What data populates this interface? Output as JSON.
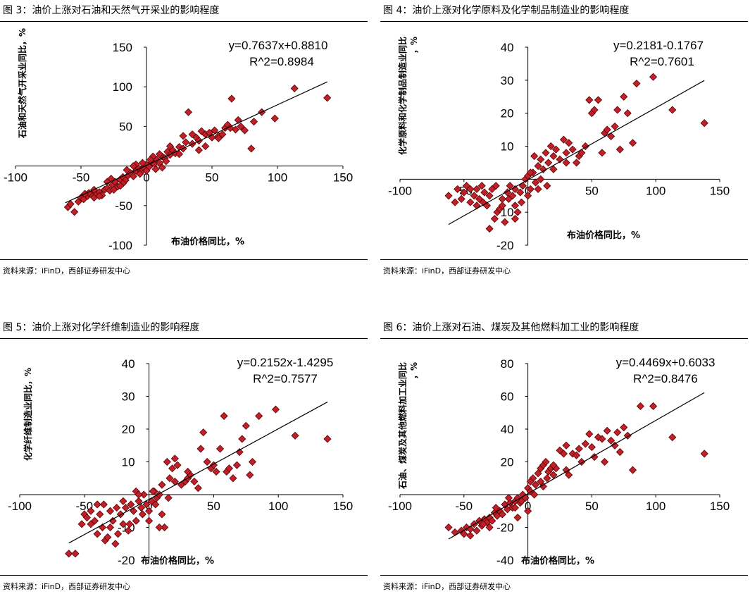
{
  "source_label": "资料来源：iFinD，西部证券研发中心",
  "colors": {
    "marker_fill": "#C0202A",
    "marker_stroke": "#5a0000",
    "axis": "#000000",
    "trendline": "#000000"
  },
  "chart_data": [
    {
      "type": "scatter",
      "title": "图 3：油价上涨对石油和天然气开采业的影响程度",
      "xlabel": "布油价格同比，%",
      "ylabel": "石油和天然气开采业同比，%",
      "equation": "y=0.7637x+0.8810",
      "r2": "R^2=0.8984",
      "slope": 0.7637,
      "intercept": 0.881,
      "xlim": [
        -100,
        150
      ],
      "ylim": [
        -100,
        150
      ],
      "xticks": [
        -100,
        -50,
        0,
        50,
        100,
        150
      ],
      "yticks": [
        -100,
        -50,
        0,
        50,
        100,
        150
      ],
      "trend_x": [
        -62,
        138
      ],
      "points": [
        [
          -60,
          -52
        ],
        [
          -55,
          -58
        ],
        [
          -52,
          -45
        ],
        [
          -50,
          -40
        ],
        [
          -48,
          -42
        ],
        [
          -45,
          -38
        ],
        [
          -42,
          -36
        ],
        [
          -40,
          -40
        ],
        [
          -38,
          -35
        ],
        [
          -36,
          -33
        ],
        [
          -34,
          -37
        ],
        [
          -32,
          -30
        ],
        [
          -30,
          -28
        ],
        [
          -28,
          -31
        ],
        [
          -26,
          -24
        ],
        [
          -24,
          -20
        ],
        [
          -22,
          -26
        ],
        [
          -20,
          -17
        ],
        [
          -18,
          -14
        ],
        [
          -16,
          -18
        ],
        [
          -14,
          -12
        ],
        [
          -12,
          -9
        ],
        [
          -10,
          -13
        ],
        [
          -8,
          -6
        ],
        [
          -6,
          -3
        ],
        [
          -4,
          -7
        ],
        [
          -2,
          -2
        ],
        [
          0,
          2
        ],
        [
          2,
          -1
        ],
        [
          4,
          5
        ],
        [
          6,
          3
        ],
        [
          8,
          8
        ],
        [
          10,
          4
        ],
        [
          12,
          12
        ],
        [
          14,
          10
        ],
        [
          16,
          18
        ],
        [
          18,
          14
        ],
        [
          20,
          20
        ],
        [
          22,
          16
        ],
        [
          25,
          24
        ],
        [
          28,
          22
        ],
        [
          30,
          30
        ],
        [
          32,
          68
        ],
        [
          35,
          28
        ],
        [
          38,
          36
        ],
        [
          40,
          32
        ],
        [
          42,
          44
        ],
        [
          45,
          40
        ],
        [
          48,
          42
        ],
        [
          52,
          45
        ],
        [
          55,
          38
        ],
        [
          58,
          40
        ],
        [
          60,
          48
        ],
        [
          62,
          52
        ],
        [
          65,
          85
        ],
        [
          68,
          46
        ],
        [
          70,
          58
        ],
        [
          72,
          50
        ],
        [
          75,
          45
        ],
        [
          80,
          22
        ],
        [
          82,
          56
        ],
        [
          88,
          68
        ],
        [
          98,
          60
        ],
        [
          113,
          98
        ],
        [
          138,
          86
        ],
        [
          -30,
          -20
        ],
        [
          -25,
          -30
        ],
        [
          -15,
          -5
        ],
        [
          -5,
          -10
        ],
        [
          5,
          12
        ],
        [
          15,
          6
        ],
        [
          25,
          15
        ],
        [
          35,
          40
        ],
        [
          45,
          25
        ],
        [
          55,
          35
        ],
        [
          -44,
          -34
        ],
        [
          -36,
          -38
        ],
        [
          -18,
          -22
        ],
        [
          -8,
          2
        ],
        [
          12,
          -2
        ],
        [
          28,
          38
        ],
        [
          50,
          36
        ],
        [
          64,
          48
        ],
        [
          -40,
          -30
        ],
        [
          -20,
          -25
        ],
        [
          -10,
          0
        ],
        [
          0,
          -6
        ],
        [
          10,
          15
        ],
        [
          3,
          8
        ],
        [
          -3,
          4
        ],
        [
          7,
          -4
        ],
        [
          -58,
          -48
        ],
        [
          -47,
          -35
        ],
        [
          -27,
          -16
        ],
        [
          18,
          25
        ],
        [
          40,
          20
        ]
      ]
    },
    {
      "type": "scatter",
      "title": "图 4：油价上涨对化学原料及化学制品制造业的影响程度",
      "xlabel": "布油价格同比，%",
      "ylabel": "化学原料和化学制品制造业同比，%",
      "equation": "y=0.2181-0.1767",
      "r2": "R^2=0.7601",
      "slope": 0.2181,
      "intercept": -0.1767,
      "xlim": [
        -100,
        150
      ],
      "ylim": [
        -20,
        40
      ],
      "xticks": [
        -100,
        -50,
        0,
        50,
        100,
        150
      ],
      "yticks": [
        -20,
        -10,
        0,
        10,
        20,
        30,
        40
      ],
      "trend_x": [
        -62,
        138
      ],
      "points": [
        [
          -62,
          -5
        ],
        [
          -55,
          -3
        ],
        [
          -52,
          -6
        ],
        [
          -50,
          -4
        ],
        [
          -48,
          -2
        ],
        [
          -45,
          -7
        ],
        [
          -42,
          -5
        ],
        [
          -40,
          -3
        ],
        [
          -38,
          -6
        ],
        [
          -36,
          -2
        ],
        [
          -34,
          -4
        ],
        [
          -32,
          -8
        ],
        [
          -30,
          -15
        ],
        [
          -28,
          -3
        ],
        [
          -26,
          -12
        ],
        [
          -24,
          -10
        ],
        [
          -22,
          -9
        ],
        [
          -20,
          -6
        ],
        [
          -18,
          -13
        ],
        [
          -16,
          -4
        ],
        [
          -14,
          -2
        ],
        [
          -12,
          -5
        ],
        [
          -10,
          -8
        ],
        [
          -8,
          -10
        ],
        [
          -6,
          -4
        ],
        [
          -4,
          -2
        ],
        [
          -2,
          0
        ],
        [
          0,
          1
        ],
        [
          2,
          -3
        ],
        [
          4,
          2
        ],
        [
          6,
          -1
        ],
        [
          8,
          4
        ],
        [
          10,
          6
        ],
        [
          12,
          3
        ],
        [
          14,
          8
        ],
        [
          16,
          5
        ],
        [
          18,
          10
        ],
        [
          20,
          7
        ],
        [
          22,
          9
        ],
        [
          25,
          6
        ],
        [
          28,
          12
        ],
        [
          30,
          8
        ],
        [
          32,
          11
        ],
        [
          35,
          9
        ],
        [
          38,
          5
        ],
        [
          40,
          7
        ],
        [
          42,
          8
        ],
        [
          45,
          10
        ],
        [
          48,
          24
        ],
        [
          50,
          20
        ],
        [
          52,
          21
        ],
        [
          55,
          24
        ],
        [
          58,
          8
        ],
        [
          60,
          14
        ],
        [
          62,
          15
        ],
        [
          65,
          13
        ],
        [
          68,
          16
        ],
        [
          70,
          21
        ],
        [
          72,
          9
        ],
        [
          75,
          25
        ],
        [
          78,
          20
        ],
        [
          82,
          11
        ],
        [
          85,
          29
        ],
        [
          98,
          31
        ],
        [
          113,
          21
        ],
        [
          138,
          17
        ],
        [
          -30,
          -5
        ],
        [
          -20,
          -8
        ],
        [
          -10,
          -3
        ],
        [
          0,
          -5
        ],
        [
          10,
          0
        ],
        [
          20,
          3
        ],
        [
          30,
          5
        ],
        [
          5,
          7
        ],
        [
          -5,
          -7
        ],
        [
          15,
          -2
        ],
        [
          -15,
          -6
        ],
        [
          -25,
          -2
        ],
        [
          -35,
          -7
        ],
        [
          -45,
          -3
        ],
        [
          -57,
          -7
        ],
        [
          -40,
          -8
        ],
        [
          -10,
          -12
        ],
        [
          8,
          -3
        ],
        [
          2,
          2
        ]
      ]
    },
    {
      "type": "scatter",
      "title": "图 5：油价上涨对化学纤维制造业的影响程度",
      "xlabel": "布油价格同比，%",
      "ylabel": "化学纤维制造业同比，%",
      "equation": "y=0.2152x-1.4295",
      "r2": "R^2=0.7577",
      "slope": 0.2152,
      "intercept": -1.4295,
      "xlim": [
        -100,
        150
      ],
      "ylim": [
        -20,
        40
      ],
      "xticks": [
        -100,
        -50,
        0,
        50,
        100,
        150
      ],
      "yticks": [
        -20,
        -10,
        0,
        10,
        20,
        30,
        40
      ],
      "trend_x": [
        -62,
        138
      ],
      "points": [
        [
          -62,
          -18
        ],
        [
          -57,
          -18
        ],
        [
          -52,
          -9
        ],
        [
          -50,
          -6
        ],
        [
          -48,
          -7
        ],
        [
          -45,
          -9
        ],
        [
          -42,
          -8
        ],
        [
          -40,
          -12
        ],
        [
          -38,
          -6
        ],
        [
          -36,
          -10
        ],
        [
          -34,
          -14
        ],
        [
          -32,
          -13
        ],
        [
          -30,
          -5
        ],
        [
          -28,
          -8
        ],
        [
          -26,
          -15
        ],
        [
          -24,
          -12
        ],
        [
          -22,
          -6
        ],
        [
          -20,
          -9
        ],
        [
          -18,
          -4
        ],
        [
          -16,
          -11
        ],
        [
          -14,
          -3
        ],
        [
          -12,
          -5
        ],
        [
          -10,
          -8
        ],
        [
          -8,
          -2
        ],
        [
          -6,
          -4
        ],
        [
          -4,
          0
        ],
        [
          -2,
          -3
        ],
        [
          0,
          -5
        ],
        [
          2,
          -2
        ],
        [
          4,
          1
        ],
        [
          6,
          -1
        ],
        [
          8,
          0
        ],
        [
          10,
          -6
        ],
        [
          12,
          -10
        ],
        [
          14,
          10
        ],
        [
          16,
          5
        ],
        [
          18,
          8
        ],
        [
          20,
          11
        ],
        [
          22,
          9
        ],
        [
          25,
          3
        ],
        [
          28,
          4
        ],
        [
          30,
          5
        ],
        [
          32,
          6
        ],
        [
          35,
          4
        ],
        [
          38,
          2
        ],
        [
          40,
          14
        ],
        [
          42,
          19
        ],
        [
          45,
          10
        ],
        [
          48,
          8
        ],
        [
          50,
          9
        ],
        [
          52,
          7
        ],
        [
          55,
          14
        ],
        [
          58,
          24
        ],
        [
          60,
          7
        ],
        [
          62,
          8
        ],
        [
          65,
          5
        ],
        [
          68,
          9
        ],
        [
          70,
          13
        ],
        [
          72,
          17
        ],
        [
          75,
          21
        ],
        [
          78,
          6
        ],
        [
          80,
          10
        ],
        [
          85,
          24
        ],
        [
          98,
          26
        ],
        [
          113,
          18
        ],
        [
          138,
          17
        ],
        [
          -30,
          -10
        ],
        [
          -20,
          -2
        ],
        [
          -10,
          1
        ],
        [
          0,
          -8
        ],
        [
          10,
          3
        ],
        [
          20,
          4
        ],
        [
          30,
          7
        ],
        [
          5,
          -3
        ],
        [
          -5,
          -6
        ],
        [
          15,
          -1
        ],
        [
          -15,
          -9
        ],
        [
          -25,
          -4
        ],
        [
          -35,
          -3
        ],
        [
          -45,
          -5
        ],
        [
          -40,
          -3
        ],
        [
          8,
          -10
        ],
        [
          -8,
          0
        ],
        [
          3,
          1
        ]
      ]
    },
    {
      "type": "scatter",
      "title": "图 6：油价上涨对石油、煤炭及其他燃料加工业的影响程度",
      "xlabel": "布油价格同比，%",
      "ylabel": "石油、煤炭及其他燃料加工业同比，%",
      "equation": "y=0.4469x+0.6033",
      "r2": "R^2=0.8476",
      "slope": 0.4469,
      "intercept": 0.6033,
      "xlim": [
        -100,
        150
      ],
      "ylim": [
        -40,
        80
      ],
      "xticks": [
        -100,
        -50,
        0,
        50,
        100,
        150
      ],
      "yticks": [
        -40,
        -20,
        0,
        20,
        40,
        60,
        80
      ],
      "trend_x": [
        -62,
        138
      ],
      "points": [
        [
          -62,
          -20
        ],
        [
          -57,
          -23
        ],
        [
          -52,
          -22
        ],
        [
          -50,
          -24
        ],
        [
          -48,
          -20
        ],
        [
          -45,
          -21
        ],
        [
          -42,
          -18
        ],
        [
          -40,
          -22
        ],
        [
          -38,
          -16
        ],
        [
          -36,
          -19
        ],
        [
          -34,
          -15
        ],
        [
          -32,
          -17
        ],
        [
          -30,
          -14
        ],
        [
          -28,
          -16
        ],
        [
          -26,
          -11
        ],
        [
          -24,
          -13
        ],
        [
          -22,
          -10
        ],
        [
          -20,
          -12
        ],
        [
          -18,
          -6
        ],
        [
          -16,
          -9
        ],
        [
          -14,
          -5
        ],
        [
          -12,
          -8
        ],
        [
          -10,
          -4
        ],
        [
          -8,
          -2
        ],
        [
          -6,
          -5
        ],
        [
          -4,
          0
        ],
        [
          -2,
          -2
        ],
        [
          0,
          4
        ],
        [
          2,
          2
        ],
        [
          4,
          10
        ],
        [
          6,
          6
        ],
        [
          8,
          13
        ],
        [
          10,
          16
        ],
        [
          12,
          18
        ],
        [
          14,
          20
        ],
        [
          16,
          14
        ],
        [
          18,
          16
        ],
        [
          20,
          12
        ],
        [
          22,
          16
        ],
        [
          25,
          27
        ],
        [
          28,
          25
        ],
        [
          30,
          30
        ],
        [
          32,
          12
        ],
        [
          35,
          25
        ],
        [
          38,
          24
        ],
        [
          40,
          28
        ],
        [
          42,
          20
        ],
        [
          45,
          31
        ],
        [
          48,
          37
        ],
        [
          50,
          29
        ],
        [
          52,
          23
        ],
        [
          55,
          35
        ],
        [
          58,
          34
        ],
        [
          60,
          20
        ],
        [
          62,
          39
        ],
        [
          65,
          33
        ],
        [
          68,
          30
        ],
        [
          70,
          38
        ],
        [
          72,
          26
        ],
        [
          75,
          41
        ],
        [
          78,
          36
        ],
        [
          82,
          15
        ],
        [
          88,
          54
        ],
        [
          98,
          54
        ],
        [
          113,
          35
        ],
        [
          138,
          25
        ],
        [
          -30,
          -20
        ],
        [
          -20,
          -12
        ],
        [
          -10,
          -8
        ],
        [
          0,
          -10
        ],
        [
          10,
          8
        ],
        [
          20,
          18
        ],
        [
          30,
          15
        ],
        [
          5,
          0
        ],
        [
          -5,
          -4
        ],
        [
          15,
          10
        ],
        [
          -15,
          -2
        ],
        [
          -25,
          -8
        ],
        [
          -35,
          -18
        ],
        [
          -45,
          -25
        ],
        [
          2,
          8
        ],
        [
          -8,
          -14
        ],
        [
          12,
          5
        ]
      ]
    }
  ]
}
